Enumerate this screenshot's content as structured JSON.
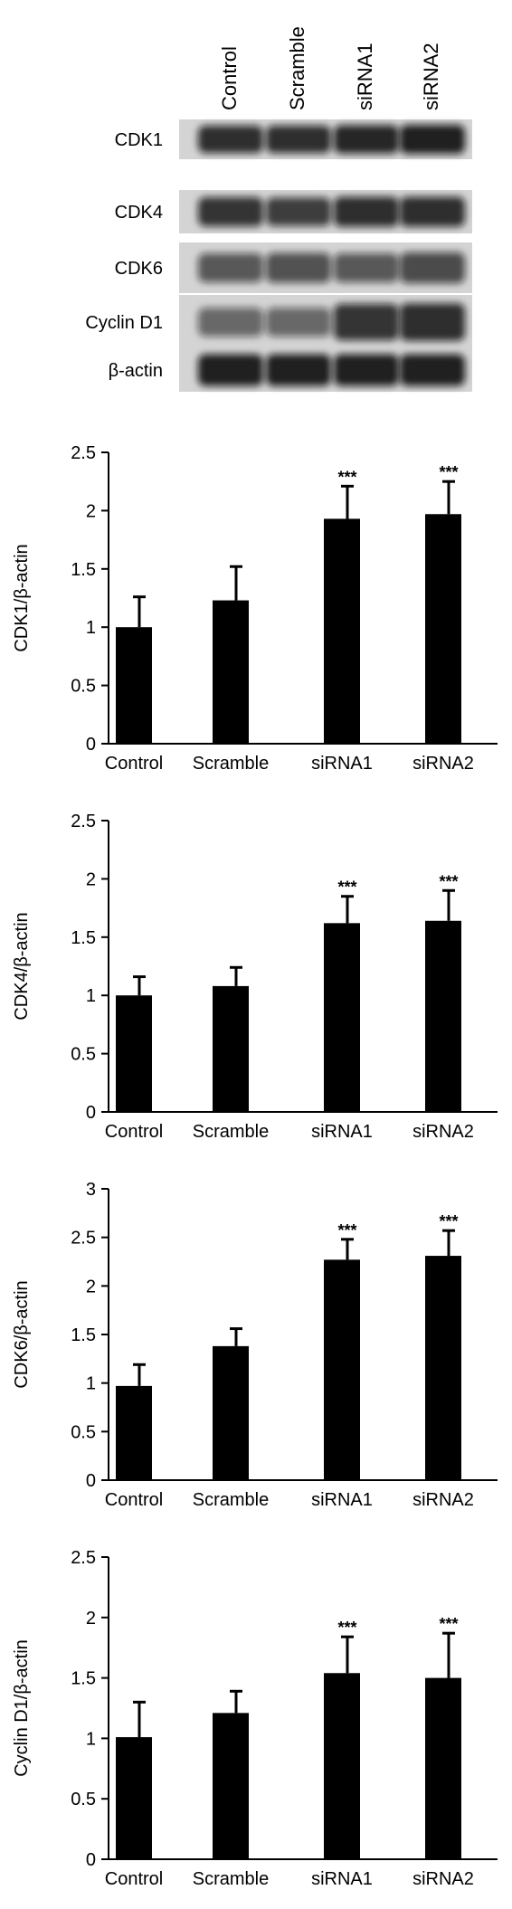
{
  "western_blot": {
    "lanes": [
      "Control",
      "Scramble",
      "siRNA1",
      "siRNA2"
    ],
    "rows": [
      {
        "label": "CDK1",
        "intensity": [
          0.85,
          0.85,
          0.9,
          0.95
        ]
      },
      {
        "label": "CDK4",
        "intensity": [
          0.8,
          0.75,
          0.85,
          0.85
        ]
      },
      {
        "label": "CDK6",
        "intensity": [
          0.55,
          0.6,
          0.55,
          0.65
        ]
      },
      {
        "label": "Cyclin D1",
        "intensity": [
          0.45,
          0.45,
          0.8,
          0.85
        ]
      },
      {
        "label": "β-actin",
        "intensity": [
          0.95,
          0.95,
          0.95,
          0.95
        ]
      }
    ]
  },
  "colors": {
    "bar": "#000000",
    "axis": "#000000",
    "band": "#111111",
    "blot_bg": "#d4d4d4"
  },
  "chart_data": [
    {
      "type": "bar",
      "categories": [
        "Control",
        "Scramble",
        "siRNA1",
        "siRNA2"
      ],
      "values": [
        1.0,
        1.23,
        1.93,
        1.97
      ],
      "errors": [
        0.26,
        0.29,
        0.28,
        0.28
      ],
      "significance": [
        "",
        "",
        "***",
        "***"
      ],
      "ylabel": "CDK1/β-actin",
      "ylim": [
        0,
        2.5
      ],
      "yticks": [
        "0",
        "0.5",
        "1",
        "1.5",
        "2",
        "2.5"
      ],
      "ytick_values": [
        0,
        0.5,
        1,
        1.5,
        2,
        2.5
      ],
      "grid": false
    },
    {
      "type": "bar",
      "categories": [
        "Control",
        "Scramble",
        "siRNA1",
        "siRNA2"
      ],
      "values": [
        1.0,
        1.08,
        1.62,
        1.64
      ],
      "errors": [
        0.16,
        0.16,
        0.23,
        0.26
      ],
      "significance": [
        "",
        "",
        "***",
        "***"
      ],
      "ylabel": "CDK4/β-actin",
      "ylim": [
        0,
        2.5
      ],
      "yticks": [
        "0",
        "0.5",
        "1",
        "1.5",
        "2",
        "2.5"
      ],
      "ytick_values": [
        0,
        0.5,
        1,
        1.5,
        2,
        2.5
      ],
      "grid": false
    },
    {
      "type": "bar",
      "categories": [
        "Control",
        "Scramble",
        "siRNA1",
        "siRNA2"
      ],
      "values": [
        0.97,
        1.38,
        2.27,
        2.31
      ],
      "errors": [
        0.22,
        0.18,
        0.21,
        0.26
      ],
      "significance": [
        "",
        "",
        "***",
        "***"
      ],
      "ylabel": "CDK6/β-actin",
      "ylim": [
        0,
        3
      ],
      "yticks": [
        "0",
        "0.5",
        "1",
        "1.5",
        "2",
        "2.5",
        "3"
      ],
      "ytick_values": [
        0,
        0.5,
        1,
        1.5,
        2,
        2.5,
        3
      ],
      "grid": false
    },
    {
      "type": "bar",
      "categories": [
        "Control",
        "Scramble",
        "siRNA1",
        "siRNA2"
      ],
      "values": [
        1.01,
        1.21,
        1.54,
        1.5
      ],
      "errors": [
        0.29,
        0.18,
        0.3,
        0.37
      ],
      "significance": [
        "",
        "",
        "***",
        "***"
      ],
      "ylabel": "Cyclin D1/β-actin",
      "ylim": [
        0,
        2.5
      ],
      "yticks": [
        "0",
        "0.5",
        "1",
        "1.5",
        "2",
        "2.5"
      ],
      "ytick_values": [
        0,
        0.5,
        1,
        1.5,
        2,
        2.5
      ],
      "grid": false
    }
  ]
}
